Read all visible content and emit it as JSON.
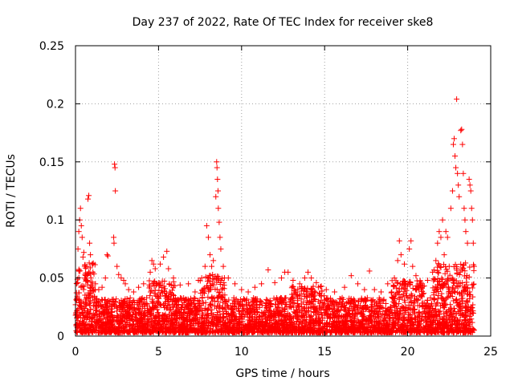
{
  "chart_data": {
    "type": "scatter",
    "title": "Day 237 of 2022, Rate Of TEC Index for receiver ske8",
    "xlabel": "GPS time / hours",
    "ylabel": "ROTI / TECUs",
    "xlim": [
      0,
      25
    ],
    "ylim": [
      0,
      0.25
    ],
    "x_ticks": [
      "0",
      "5",
      "10",
      "15",
      "20",
      "25"
    ],
    "y_ticks": [
      "0",
      "0.05",
      "0.1",
      "0.15",
      "0.2",
      "0.25"
    ],
    "grid": true,
    "marker": "+",
    "color": "#ff0000",
    "series": [
      {
        "name": "ROTI",
        "points": [
          [
            0.1,
            0.02
          ],
          [
            0.15,
            0.075
          ],
          [
            0.2,
            0.09
          ],
          [
            0.25,
            0.1
          ],
          [
            0.3,
            0.11
          ],
          [
            0.35,
            0.095
          ],
          [
            0.4,
            0.085
          ],
          [
            0.45,
            0.068
          ],
          [
            0.5,
            0.072
          ],
          [
            0.55,
            0.06
          ],
          [
            0.6,
            0.052
          ],
          [
            0.7,
            0.048
          ],
          [
            0.75,
            0.118
          ],
          [
            0.8,
            0.121
          ],
          [
            0.85,
            0.08
          ],
          [
            0.9,
            0.07
          ],
          [
            1.0,
            0.062
          ],
          [
            1.05,
            0.055
          ],
          [
            1.2,
            0.045
          ],
          [
            1.4,
            0.04
          ],
          [
            1.6,
            0.042
          ],
          [
            1.8,
            0.05
          ],
          [
            1.9,
            0.07
          ],
          [
            1.95,
            0.069
          ],
          [
            2.3,
            0.085
          ],
          [
            2.32,
            0.08
          ],
          [
            2.35,
            0.148
          ],
          [
            2.38,
            0.145
          ],
          [
            2.4,
            0.125
          ],
          [
            2.5,
            0.06
          ],
          [
            2.6,
            0.053
          ],
          [
            2.75,
            0.05
          ],
          [
            2.9,
            0.048
          ],
          [
            3.0,
            0.045
          ],
          [
            3.2,
            0.04
          ],
          [
            3.5,
            0.038
          ],
          [
            3.8,
            0.042
          ],
          [
            4.1,
            0.045
          ],
          [
            4.5,
            0.055
          ],
          [
            4.6,
            0.065
          ],
          [
            4.7,
            0.062
          ],
          [
            4.8,
            0.058
          ],
          [
            5.1,
            0.062
          ],
          [
            5.3,
            0.068
          ],
          [
            5.5,
            0.073
          ],
          [
            5.6,
            0.058
          ],
          [
            5.9,
            0.05
          ],
          [
            6.3,
            0.044
          ],
          [
            6.8,
            0.045
          ],
          [
            7.2,
            0.038
          ],
          [
            7.4,
            0.048
          ],
          [
            7.6,
            0.05
          ],
          [
            7.8,
            0.06
          ],
          [
            7.9,
            0.095
          ],
          [
            8.0,
            0.085
          ],
          [
            8.1,
            0.07
          ],
          [
            8.2,
            0.06
          ],
          [
            8.3,
            0.065
          ],
          [
            8.45,
            0.12
          ],
          [
            8.5,
            0.15
          ],
          [
            8.52,
            0.145
          ],
          [
            8.55,
            0.135
          ],
          [
            8.58,
            0.125
          ],
          [
            8.6,
            0.11
          ],
          [
            8.65,
            0.098
          ],
          [
            8.7,
            0.085
          ],
          [
            8.75,
            0.075
          ],
          [
            8.9,
            0.06
          ],
          [
            9.2,
            0.05
          ],
          [
            9.6,
            0.045
          ],
          [
            10.0,
            0.04
          ],
          [
            10.4,
            0.038
          ],
          [
            10.8,
            0.042
          ],
          [
            11.2,
            0.045
          ],
          [
            11.6,
            0.057
          ],
          [
            12.0,
            0.046
          ],
          [
            12.4,
            0.05
          ],
          [
            12.6,
            0.055
          ],
          [
            12.8,
            0.055
          ],
          [
            13.1,
            0.048
          ],
          [
            13.5,
            0.045
          ],
          [
            13.8,
            0.05
          ],
          [
            14.0,
            0.055
          ],
          [
            14.2,
            0.05
          ],
          [
            14.5,
            0.046
          ],
          [
            14.8,
            0.043
          ],
          [
            15.1,
            0.04
          ],
          [
            15.6,
            0.038
          ],
          [
            16.2,
            0.042
          ],
          [
            16.6,
            0.052
          ],
          [
            17.0,
            0.045
          ],
          [
            17.4,
            0.04
          ],
          [
            17.7,
            0.056
          ],
          [
            18.0,
            0.04
          ],
          [
            18.4,
            0.038
          ],
          [
            18.8,
            0.045
          ],
          [
            19.2,
            0.05
          ],
          [
            19.4,
            0.065
          ],
          [
            19.5,
            0.082
          ],
          [
            19.6,
            0.07
          ],
          [
            19.8,
            0.062
          ],
          [
            20.1,
            0.075
          ],
          [
            20.2,
            0.082
          ],
          [
            20.3,
            0.06
          ],
          [
            20.5,
            0.052
          ],
          [
            20.8,
            0.045
          ],
          [
            21.2,
            0.048
          ],
          [
            21.5,
            0.055
          ],
          [
            21.7,
            0.065
          ],
          [
            21.8,
            0.08
          ],
          [
            21.9,
            0.09
          ],
          [
            22.0,
            0.085
          ],
          [
            22.1,
            0.1
          ],
          [
            22.2,
            0.07
          ],
          [
            22.3,
            0.09
          ],
          [
            22.4,
            0.085
          ],
          [
            22.5,
            0.06
          ],
          [
            22.6,
            0.11
          ],
          [
            22.7,
            0.125
          ],
          [
            22.75,
            0.165
          ],
          [
            22.8,
            0.17
          ],
          [
            22.85,
            0.155
          ],
          [
            22.9,
            0.145
          ],
          [
            22.95,
            0.204
          ],
          [
            23.0,
            0.14
          ],
          [
            23.05,
            0.13
          ],
          [
            23.1,
            0.12
          ],
          [
            23.2,
            0.177
          ],
          [
            23.25,
            0.178
          ],
          [
            23.3,
            0.165
          ],
          [
            23.35,
            0.14
          ],
          [
            23.4,
            0.11
          ],
          [
            23.45,
            0.1
          ],
          [
            23.5,
            0.09
          ],
          [
            23.6,
            0.08
          ],
          [
            23.7,
            0.135
          ],
          [
            23.75,
            0.13
          ],
          [
            23.8,
            0.125
          ],
          [
            23.85,
            0.11
          ],
          [
            23.9,
            0.1
          ],
          [
            23.95,
            0.08
          ],
          [
            24.0,
            0.06
          ]
        ]
      }
    ]
  }
}
